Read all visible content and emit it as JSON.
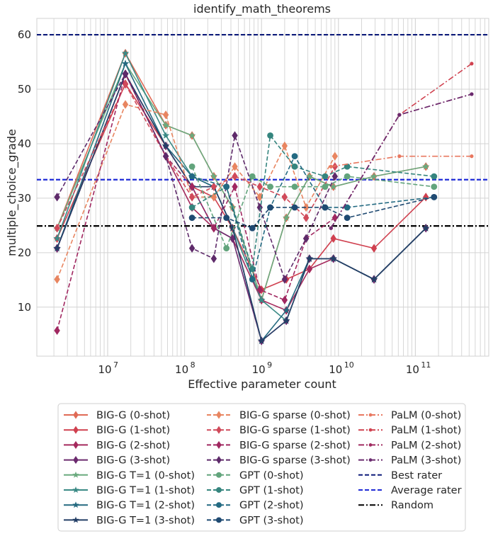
{
  "chart_data": {
    "type": "line",
    "title": "identify_math_theorems",
    "xlabel": "Effective parameter count",
    "ylabel": "multiple_choice_grade",
    "xscale": "log",
    "xlim": [
      1200000.0,
      900000000000.0
    ],
    "ylim": [
      1,
      63
    ],
    "yticks": [
      10,
      20,
      30,
      40,
      50,
      60
    ],
    "xtick_labels": [
      {
        "exp": "7",
        "value": 10000000.0
      },
      {
        "exp": "8",
        "value": 100000000.0
      },
      {
        "exp": "9",
        "value": 1000000000.0
      },
      {
        "exp": "10",
        "value": 10000000000.0
      },
      {
        "exp": "11",
        "value": 100000000000.0
      }
    ],
    "grid": true,
    "legend_position": "below",
    "hlines": [
      {
        "name": "Best rater",
        "y": 60.0,
        "color": "#0d1b7a",
        "dash": "dashed"
      },
      {
        "name": "Average rater",
        "y": 33.4,
        "color": "#1f2bd6",
        "dash": "dashed"
      },
      {
        "name": "Random",
        "y": 24.9,
        "color": "#000000",
        "dash": "dashdot"
      }
    ],
    "series": [
      {
        "name": "BIG-G (0-shot)",
        "color": "#e06a55",
        "marker": "diamond",
        "dash": "solid",
        "x": [
          2200000.0,
          17000000.0,
          57000000.0,
          125000000.0,
          240000000.0,
          420000000.0,
          1000000000.0,
          2100000000.0,
          4200000000.0,
          8600000000.0,
          29000000000.0,
          137000000000.0
        ],
        "y": [
          24.5,
          56.6,
          43.4,
          41.5,
          34.0,
          28.3,
          11.3,
          26.4,
          34.0,
          32.1,
          34.0,
          35.8
        ]
      },
      {
        "name": "BIG-G (1-shot)",
        "color": "#d0404f",
        "marker": "diamond",
        "dash": "solid",
        "x": [
          2200000.0,
          17000000.0,
          57000000.0,
          125000000.0,
          240000000.0,
          420000000.0,
          1000000000.0,
          2100000000.0,
          4200000000.0,
          8600000000.0,
          29000000000.0,
          137000000000.0
        ],
        "y": [
          22.6,
          51.0,
          39.6,
          32.1,
          30.2,
          24.5,
          13.2,
          15.1,
          17.0,
          22.6,
          20.8,
          30.2
        ]
      },
      {
        "name": "BIG-G (2-shot)",
        "color": "#a52a5d",
        "marker": "diamond",
        "dash": "solid",
        "x": [
          2200000.0,
          17000000.0,
          57000000.0,
          125000000.0,
          240000000.0,
          420000000.0,
          1000000000.0,
          2100000000.0,
          4200000000.0,
          8600000000.0,
          29000000000.0,
          137000000000.0
        ],
        "y": [
          20.8,
          52.8,
          37.7,
          28.3,
          24.5,
          22.6,
          11.3,
          9.4,
          17.0,
          18.9,
          15.1,
          24.5
        ]
      },
      {
        "name": "BIG-G (3-shot)",
        "color": "#6b2a6e",
        "marker": "diamond",
        "dash": "solid",
        "x": [
          2200000.0,
          17000000.0,
          57000000.0,
          125000000.0,
          240000000.0,
          420000000.0,
          1000000000.0,
          2100000000.0,
          4200000000.0,
          8600000000.0,
          29000000000.0,
          137000000000.0
        ],
        "y": [
          20.8,
          52.8,
          39.6,
          32.1,
          24.5,
          22.6,
          3.8,
          7.5,
          18.9,
          18.9,
          15.1,
          24.5
        ]
      },
      {
        "name": "BIG-G T=1 (0-shot)",
        "color": "#6aaa7e",
        "marker": "star",
        "dash": "solid",
        "x": [
          2200000.0,
          17000000.0,
          57000000.0,
          125000000.0,
          240000000.0,
          420000000.0,
          1000000000.0,
          2100000000.0,
          4200000000.0,
          8600000000.0,
          29000000000.0,
          137000000000.0
        ],
        "y": [
          24.5,
          54.7,
          43.4,
          41.5,
          34.0,
          28.3,
          11.3,
          26.4,
          34.0,
          32.1,
          34.0,
          35.8
        ]
      },
      {
        "name": "BIG-G T=1 (1-shot)",
        "color": "#3a8a85",
        "marker": "star",
        "dash": "solid",
        "x": [
          2200000.0,
          17000000.0,
          57000000.0,
          125000000.0,
          240000000.0,
          420000000.0,
          1000000000.0,
          2100000000.0,
          4200000000.0,
          8600000000.0,
          29000000000.0,
          137000000000.0
        ],
        "y": [
          22.6,
          56.6,
          41.5,
          34.0,
          32.1,
          24.5,
          11.3,
          7.5,
          18.9,
          18.9,
          15.1,
          24.5
        ]
      },
      {
        "name": "BIG-G T=1 (2-shot)",
        "color": "#256a80",
        "marker": "star",
        "dash": "solid",
        "x": [
          2200000.0,
          17000000.0,
          57000000.0,
          125000000.0,
          240000000.0,
          420000000.0,
          1000000000.0,
          2100000000.0,
          4200000000.0,
          8600000000.0,
          29000000000.0,
          137000000000.0
        ],
        "y": [
          20.8,
          54.7,
          39.6,
          34.0,
          32.1,
          24.5,
          3.8,
          9.4,
          18.9,
          18.9,
          15.1,
          24.5
        ]
      },
      {
        "name": "BIG-G T=1 (3-shot)",
        "color": "#243f66",
        "marker": "star",
        "dash": "solid",
        "x": [
          2200000.0,
          17000000.0,
          57000000.0,
          125000000.0,
          240000000.0,
          420000000.0,
          1000000000.0,
          2100000000.0,
          4200000000.0,
          8600000000.0,
          29000000000.0,
          137000000000.0
        ],
        "y": [
          20.8,
          52.8,
          39.6,
          32.1,
          32.1,
          24.5,
          3.8,
          7.5,
          18.9,
          18.9,
          15.1,
          24.5
        ]
      },
      {
        "name": "BIG-G sparse (0-shot)",
        "color": "#e88560",
        "marker": "diamond",
        "dash": "dashed",
        "x": [
          2200000.0,
          17000000.0,
          57000000.0,
          125000000.0,
          240000000.0,
          450000000.0,
          950000000.0,
          2000000000.0,
          3800000000.0,
          9000000000.0
        ],
        "y": [
          15.1,
          47.2,
          45.3,
          30.2,
          30.2,
          35.8,
          30.2,
          39.6,
          28.3,
          37.7
        ]
      },
      {
        "name": "BIG-G sparse (1-shot)",
        "color": "#d04a5a",
        "marker": "diamond",
        "dash": "dashed",
        "x": [
          2200000.0,
          17000000.0,
          57000000.0,
          125000000.0,
          240000000.0,
          450000000.0,
          950000000.0,
          2000000000.0,
          3800000000.0,
          9000000000.0
        ],
        "y": [
          24.5,
          50.9,
          37.7,
          30.2,
          32.1,
          34.0,
          32.1,
          30.2,
          26.4,
          35.8
        ]
      },
      {
        "name": "BIG-G sparse (2-shot)",
        "color": "#a02760",
        "marker": "diamond",
        "dash": "dashed",
        "x": [
          2200000.0,
          17000000.0,
          57000000.0,
          125000000.0,
          240000000.0,
          450000000.0,
          950000000.0,
          2000000000.0,
          3800000000.0,
          9000000000.0
        ],
        "y": [
          5.7,
          52.8,
          37.7,
          32.1,
          24.5,
          32.1,
          13.2,
          11.3,
          22.6,
          26.4
        ]
      },
      {
        "name": "BIG-G sparse (3-shot)",
        "color": "#5e2a6a",
        "marker": "diamond",
        "dash": "dashed",
        "x": [
          2200000.0,
          17000000.0,
          57000000.0,
          125000000.0,
          240000000.0,
          450000000.0,
          950000000.0,
          2000000000.0,
          3800000000.0,
          9000000000.0
        ],
        "y": [
          30.2,
          52.8,
          37.7,
          20.8,
          18.9,
          41.5,
          28.3,
          15.1,
          22.6,
          34.0
        ]
      },
      {
        "name": "GPT (0-shot)",
        "color": "#62a47c",
        "marker": "circle",
        "dash": "dashed",
        "x": [
          125000000.0,
          350000000.0,
          760000000.0,
          1300000000.0,
          2700000000.0,
          6700000000.0,
          13000000000.0,
          175000000000.0
        ],
        "y": [
          35.8,
          20.8,
          34.0,
          32.1,
          32.1,
          32.1,
          34.0,
          32.1
        ]
      },
      {
        "name": "GPT (1-shot)",
        "color": "#35857e",
        "marker": "circle",
        "dash": "dashed",
        "x": [
          125000000.0,
          350000000.0,
          760000000.0,
          1300000000.0,
          2700000000.0,
          6700000000.0,
          13000000000.0,
          175000000000.0
        ],
        "y": [
          28.3,
          32.1,
          17.0,
          41.5,
          35.8,
          34.0,
          35.8,
          34.0
        ]
      },
      {
        "name": "GPT (2-shot)",
        "color": "#236a82",
        "marker": "circle",
        "dash": "dashed",
        "x": [
          125000000.0,
          350000000.0,
          760000000.0,
          1300000000.0,
          2700000000.0,
          6700000000.0,
          13000000000.0,
          175000000000.0
        ],
        "y": [
          34.0,
          32.1,
          15.1,
          28.3,
          37.7,
          28.3,
          28.3,
          30.2
        ]
      },
      {
        "name": "GPT (3-shot)",
        "color": "#1f4a72",
        "marker": "circle",
        "dash": "dashed",
        "x": [
          125000000.0,
          350000000.0,
          760000000.0,
          1300000000.0,
          2700000000.0,
          6700000000.0,
          13000000000.0,
          175000000000.0
        ],
        "y": [
          26.4,
          26.4,
          24.5,
          28.3,
          28.3,
          28.3,
          26.4,
          30.2
        ]
      },
      {
        "name": "PaLM (0-shot)",
        "color": "#e8775f",
        "marker": "dot",
        "dash": "dashdot",
        "x": [
          8000000000.0,
          62000000000.0,
          540000000000.0
        ],
        "y": [
          35.8,
          37.7,
          37.7
        ]
      },
      {
        "name": "PaLM (1-shot)",
        "color": "#d0414f",
        "marker": "dot",
        "dash": "dashdot",
        "x": [
          8000000000.0,
          62000000000.0,
          540000000000.0
        ],
        "y": [
          24.5,
          45.3,
          54.7
        ]
      },
      {
        "name": "PaLM (2-shot)",
        "color": "#a02a60",
        "marker": "dot",
        "dash": "dashdot",
        "x": [
          8000000000.0,
          62000000000.0,
          540000000000.0
        ],
        "y": [
          24.5,
          45.3,
          49.1
        ]
      },
      {
        "name": "PaLM (3-shot)",
        "color": "#6a2a6e",
        "marker": "dot",
        "dash": "dashdot",
        "x": [
          8000000000.0,
          62000000000.0,
          540000000000.0
        ],
        "y": [
          24.5,
          45.3,
          49.1
        ]
      }
    ],
    "legend_entries": [
      {
        "label": "BIG-G (0-shot)",
        "color": "#e06a55",
        "marker": "diamond",
        "dash": "solid"
      },
      {
        "label": "BIG-G (1-shot)",
        "color": "#d0404f",
        "marker": "diamond",
        "dash": "solid"
      },
      {
        "label": "BIG-G (2-shot)",
        "color": "#a52a5d",
        "marker": "diamond",
        "dash": "solid"
      },
      {
        "label": "BIG-G (3-shot)",
        "color": "#6b2a6e",
        "marker": "diamond",
        "dash": "solid"
      },
      {
        "label": "BIG-G T=1 (0-shot)",
        "color": "#6aaa7e",
        "marker": "star",
        "dash": "solid"
      },
      {
        "label": "BIG-G T=1 (1-shot)",
        "color": "#3a8a85",
        "marker": "star",
        "dash": "solid"
      },
      {
        "label": "BIG-G T=1 (2-shot)",
        "color": "#256a80",
        "marker": "star",
        "dash": "solid"
      },
      {
        "label": "BIG-G T=1 (3-shot)",
        "color": "#243f66",
        "marker": "star",
        "dash": "solid"
      },
      {
        "label": "BIG-G sparse (0-shot)",
        "color": "#e88560",
        "marker": "diamond",
        "dash": "dashed"
      },
      {
        "label": "BIG-G sparse (1-shot)",
        "color": "#d04a5a",
        "marker": "diamond",
        "dash": "dashed"
      },
      {
        "label": "BIG-G sparse (2-shot)",
        "color": "#a02760",
        "marker": "diamond",
        "dash": "dashed"
      },
      {
        "label": "BIG-G sparse (3-shot)",
        "color": "#5e2a6a",
        "marker": "diamond",
        "dash": "dashed"
      },
      {
        "label": "GPT (0-shot)",
        "color": "#62a47c",
        "marker": "circle",
        "dash": "dashed"
      },
      {
        "label": "GPT (1-shot)",
        "color": "#35857e",
        "marker": "circle",
        "dash": "dashed"
      },
      {
        "label": "GPT (2-shot)",
        "color": "#236a82",
        "marker": "circle",
        "dash": "dashed"
      },
      {
        "label": "GPT (3-shot)",
        "color": "#1f4a72",
        "marker": "circle",
        "dash": "dashed"
      },
      {
        "label": "PaLM (0-shot)",
        "color": "#e8775f",
        "marker": "dot",
        "dash": "dashdot"
      },
      {
        "label": "PaLM (1-shot)",
        "color": "#d0414f",
        "marker": "dot",
        "dash": "dashdot"
      },
      {
        "label": "PaLM (2-shot)",
        "color": "#a02a60",
        "marker": "dot",
        "dash": "dashdot"
      },
      {
        "label": "PaLM (3-shot)",
        "color": "#6a2a6e",
        "marker": "dot",
        "dash": "dashdot"
      },
      {
        "label": "Best rater",
        "color": "#0d1b7a",
        "marker": "none",
        "dash": "dashed"
      },
      {
        "label": "Average rater",
        "color": "#1f2bd6",
        "marker": "none",
        "dash": "dashed"
      },
      {
        "label": "Random",
        "color": "#000000",
        "marker": "none",
        "dash": "dashdot"
      }
    ]
  }
}
